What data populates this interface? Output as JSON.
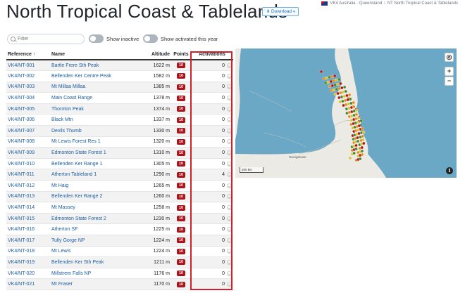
{
  "page": {
    "title": "North Tropical Coast & Tablelands",
    "download_label": "Download",
    "breadcrumb": [
      "VK4 Australia - Queensland",
      "/",
      "NT North Tropical Coast & Tablelands"
    ]
  },
  "filters": {
    "search_placeholder": "Filter",
    "toggle_inactive": "Show inactive",
    "toggle_activated": "Show activated this year"
  },
  "table": {
    "columns": {
      "reference": "Reference",
      "name": "Name",
      "altitude": "Altitude",
      "points": "Points",
      "activations": "Activations"
    },
    "rows": [
      {
        "ref": "VK4/NT-001",
        "name": "Bartle Frere Sth Peak",
        "alt": "1622 m",
        "pts": "10",
        "act": "0"
      },
      {
        "ref": "VK4/NT-002",
        "name": "Bellenden Ker Centre Peak",
        "alt": "1582 m",
        "pts": "10",
        "act": "0"
      },
      {
        "ref": "VK4/NT-003",
        "name": "Mt Millaa Millaa",
        "alt": "1385 m",
        "pts": "10",
        "act": "0"
      },
      {
        "ref": "VK4/NT-004",
        "name": "Main Coast Range",
        "alt": "1378 m",
        "pts": "10",
        "act": "0"
      },
      {
        "ref": "VK4/NT-005",
        "name": "Thornton Peak",
        "alt": "1374 m",
        "pts": "10",
        "act": "0"
      },
      {
        "ref": "VK4/NT-006",
        "name": "Black Mtn",
        "alt": "1337 m",
        "pts": "10",
        "act": "0"
      },
      {
        "ref": "VK4/NT-007",
        "name": "Devils Thumb",
        "alt": "1330 m",
        "pts": "10",
        "act": "0"
      },
      {
        "ref": "VK4/NT-008",
        "name": "Mt Lewis Forest Res 1",
        "alt": "1320 m",
        "pts": "10",
        "act": "0"
      },
      {
        "ref": "VK4/NT-009",
        "name": "Edmonton State Forest 1",
        "alt": "1310 m",
        "pts": "10",
        "act": "0"
      },
      {
        "ref": "VK4/NT-010",
        "name": "Bellenden Ker Range 1",
        "alt": "1305 m",
        "pts": "10",
        "act": "0"
      },
      {
        "ref": "VK4/NT-011",
        "name": "Atherton Tableland 1",
        "alt": "1290 m",
        "pts": "10",
        "act": "4"
      },
      {
        "ref": "VK4/NT-012",
        "name": "Mt Haig",
        "alt": "1265 m",
        "pts": "10",
        "act": "0"
      },
      {
        "ref": "VK4/NT-013",
        "name": "Bellenden Ker Range 2",
        "alt": "1260 m",
        "pts": "10",
        "act": "0"
      },
      {
        "ref": "VK4/NT-014",
        "name": "Mt Massey",
        "alt": "1258 m",
        "pts": "10",
        "act": "0"
      },
      {
        "ref": "VK4/NT-015",
        "name": "Edmonton State Forest 2",
        "alt": "1230 m",
        "pts": "10",
        "act": "0"
      },
      {
        "ref": "VK4/NT-016",
        "name": "Atherton SF",
        "alt": "1225 m",
        "pts": "10",
        "act": "0"
      },
      {
        "ref": "VK4/NT-017",
        "name": "Tully Gorge NP",
        "alt": "1224 m",
        "pts": "10",
        "act": "0"
      },
      {
        "ref": "VK4/NT-018",
        "name": "Mt Lewis",
        "alt": "1224 m",
        "pts": "10",
        "act": "0"
      },
      {
        "ref": "VK4/NT-019",
        "name": "Bellenden Ker Sth Peak",
        "alt": "1211 m",
        "pts": "10",
        "act": "0"
      },
      {
        "ref": "VK4/NT-020",
        "name": "Millstrem Falls NP",
        "alt": "1176 m",
        "pts": "10",
        "act": "0"
      },
      {
        "ref": "VK4/NT-021",
        "name": "Mt Fraser",
        "alt": "1170 m",
        "pts": "10",
        "act": "0"
      }
    ]
  },
  "map": {
    "scale_label": "200 km",
    "town_label": "Georgetown",
    "zoom_in": "+",
    "zoom_out": "−",
    "info": "i",
    "colors": {
      "sea": "#6aa8c6",
      "land": "#eceae4",
      "high": "#b0121b",
      "mid": "#e08a1e",
      "low": "#d6c22a",
      "lowest": "#3c8a2e"
    }
  }
}
